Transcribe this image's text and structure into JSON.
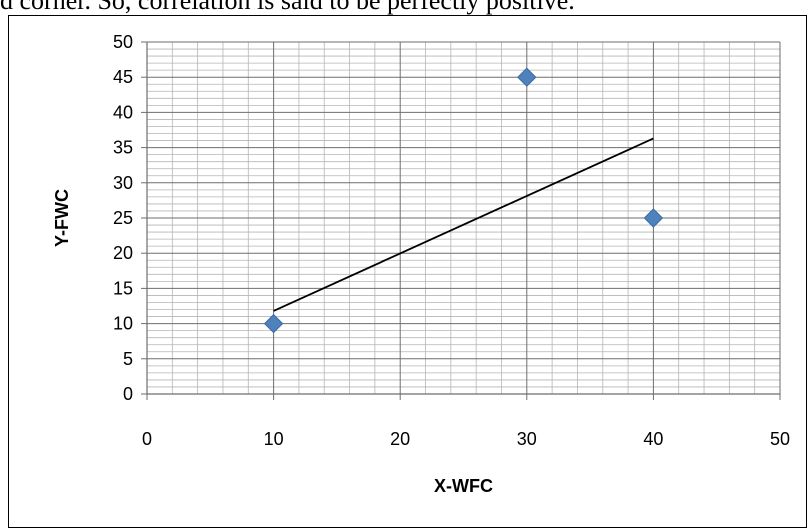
{
  "page": {
    "top_text": "d corner. So, correlation is said to be perfectly positive."
  },
  "chart_data": {
    "type": "scatter",
    "title": "",
    "xlabel": "X-WFC",
    "ylabel": "Y-FWC",
    "xlim": [
      0,
      50
    ],
    "ylim": [
      0,
      50
    ],
    "x_ticks": [
      0,
      10,
      20,
      30,
      40,
      50
    ],
    "y_ticks": [
      0,
      5,
      10,
      15,
      20,
      25,
      30,
      35,
      40,
      45,
      50
    ],
    "grid": true,
    "legend": "none",
    "marker": "diamond",
    "marker_color": "#4F81BD",
    "points": [
      {
        "x": 10,
        "y": 10
      },
      {
        "x": 30,
        "y": 45
      },
      {
        "x": 40,
        "y": 25
      }
    ],
    "trendline": {
      "type": "linear",
      "x": [
        10,
        40
      ],
      "y": [
        11.8,
        36.3
      ],
      "color": "#000000"
    }
  }
}
